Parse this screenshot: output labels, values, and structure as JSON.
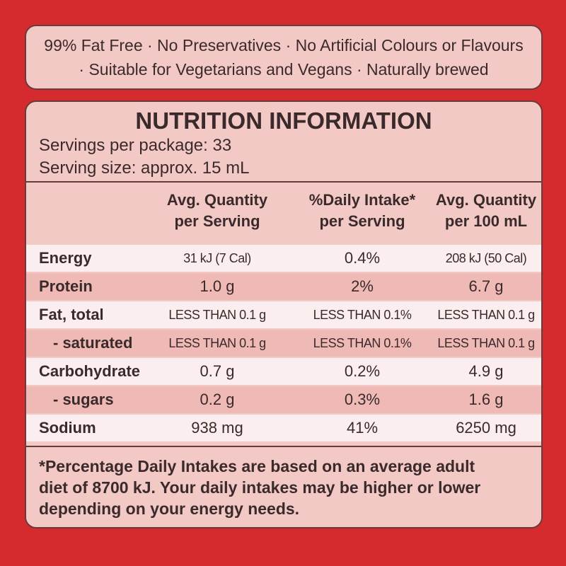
{
  "claims": [
    "99% Fat Free · No Preservatives · No Artificial Colours or Flavours",
    "· Suitable for Vegetarians and Vegans · Naturally brewed"
  ],
  "panel": {
    "title": "NUTRITION INFORMATION",
    "servings": "Servings per package: 33",
    "serving_size": "Serving size: approx. 15 mL",
    "table": {
      "header": [
        [
          "Avg. Quantity",
          "per Serving"
        ],
        [
          "%Daily Intake*",
          "per Serving"
        ],
        [
          "Avg. Quantity",
          "per 100 mL"
        ]
      ],
      "rows": [
        [
          "Energy",
          "31 kJ (7 Cal)",
          "0.4%",
          "208 kJ (50 Cal)"
        ],
        [
          "Protein",
          "1.0 g",
          "2%",
          "6.7 g"
        ],
        [
          "Fat, total",
          "LESS THAN 0.1 g",
          "LESS THAN 0.1%",
          "LESS THAN 0.1 g"
        ],
        [
          "- saturated",
          "LESS THAN 0.1 g",
          "LESS THAN 0.1%",
          "LESS THAN 0.1 g"
        ],
        [
          "Carbohydrate",
          "0.7 g",
          "0.2%",
          "4.9 g"
        ],
        [
          "- sugars",
          "0.2 g",
          "0.3%",
          "1.6 g"
        ],
        [
          "Sodium",
          "938 mg",
          "41%",
          "6250 mg"
        ]
      ]
    },
    "footnote": [
      "*Percentage Daily Intakes are based on an average adult",
      "diet of 8700 kJ. Your daily intakes may be higher or lower",
      "depending on your energy needs."
    ]
  }
}
